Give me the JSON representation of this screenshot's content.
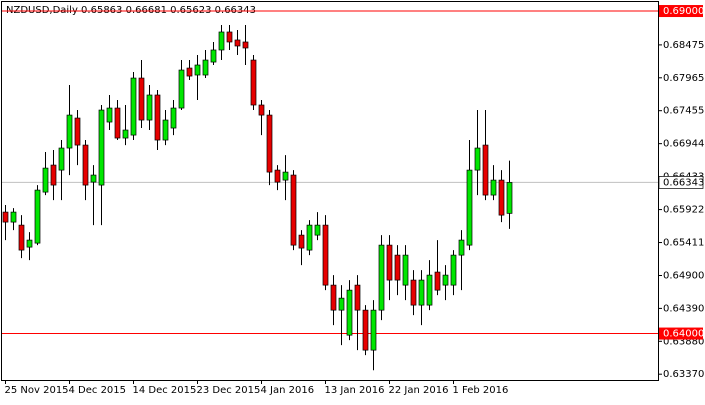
{
  "chart_data": {
    "type": "candlestick",
    "title": "NZDUSD,Daily  0.65863 0.66681 0.65623 0.66343",
    "categories": [
      "25 Nov 2015",
      null,
      null,
      null,
      null,
      null,
      null,
      null,
      "4 Dec 2015",
      null,
      null,
      null,
      null,
      null,
      null,
      null,
      "14 Dec 2015",
      null,
      null,
      null,
      null,
      null,
      null,
      null,
      "23 Dec 2015",
      null,
      null,
      null,
      null,
      null,
      null,
      null,
      "4 Jan 2016",
      null,
      null,
      null,
      null,
      null,
      null,
      null,
      "13 Jan 2016",
      null,
      null,
      null,
      null,
      null,
      null,
      null,
      "22 Jan 2016",
      null,
      null,
      null,
      null,
      null,
      null,
      null,
      "1 Feb 2016",
      null,
      null,
      null,
      null,
      null,
      null,
      null
    ],
    "open": [
      0.65883,
      0.65728,
      0.65681,
      0.6534,
      0.65402,
      0.66193,
      0.66612,
      0.66534,
      0.66876,
      0.67341,
      0.66922,
      0.66348,
      0.66302,
      0.67279,
      0.67496,
      0.67031,
      0.67077,
      0.67961,
      0.6731,
      0.67698,
      0.67,
      0.67186,
      0.67496,
      0.68116,
      0.68008,
      0.68008,
      0.68209,
      0.68396,
      0.68675,
      0.68551,
      0.6852,
      0.6824,
      0.67543,
      0.67387,
      0.66534,
      0.66379,
      0.66457,
      0.65526,
      0.65294,
      0.65526,
      0.65681,
      0.64751,
      0.64363,
      0.63975,
      0.64751,
      0.64363,
      0.63743,
      0.64363,
      0.65371,
      0.65216,
      0.64751,
      0.64829,
      0.64441,
      0.64441,
      0.64953,
      0.64751,
      0.64751,
      0.65216,
      0.65371,
      0.66534,
      0.66922,
      0.66147,
      0.66379,
      0.65863
    ],
    "high": [
      0.65992,
      0.65945,
      0.65836,
      0.65573,
      0.66302,
      0.66814,
      0.66845,
      0.67,
      0.67853,
      0.67465,
      0.67,
      0.66612,
      0.67543,
      0.67698,
      0.6762,
      0.67543,
      0.68054,
      0.6824,
      0.67853,
      0.67775,
      0.67465,
      0.6762,
      0.6824,
      0.6824,
      0.68318,
      0.68396,
      0.6852,
      0.68783,
      0.68783,
      0.68706,
      0.68783,
      0.68318,
      0.6762,
      0.67465,
      0.66612,
      0.66767,
      0.66534,
      0.65604,
      0.65758,
      0.65883,
      0.65836,
      0.64906,
      0.64751,
      0.64829,
      0.64906,
      0.64441,
      0.64518,
      0.65526,
      0.65526,
      0.65371,
      0.65371,
      0.64984,
      0.64984,
      0.65139,
      0.65449,
      0.65061,
      0.65294,
      0.65604,
      0.67,
      0.67465,
      0.67465,
      0.66612,
      0.66534,
      0.66681
    ],
    "low": [
      0.65449,
      0.65604,
      0.6517,
      0.65139,
      0.65371,
      0.66147,
      0.66069,
      0.66069,
      0.66457,
      0.66612,
      0.66069,
      0.65681,
      0.65681,
      0.67155,
      0.67,
      0.66922,
      0.67,
      0.67186,
      0.67155,
      0.66845,
      0.66922,
      0.67077,
      0.67465,
      0.6793,
      0.6762,
      0.67961,
      0.68163,
      0.6824,
      0.68396,
      0.68318,
      0.68163,
      0.67465,
      0.67077,
      0.66302,
      0.66224,
      0.66069,
      0.65294,
      0.65061,
      0.65216,
      0.65449,
      0.64673,
      0.6413,
      0.6382,
      0.63898,
      0.63743,
      0.63665,
      0.63432,
      0.64208,
      0.64518,
      0.64596,
      0.64518,
      0.64286,
      0.6413,
      0.64363,
      0.64596,
      0.64518,
      0.64596,
      0.64673,
      0.65294,
      0.66147,
      0.66069,
      0.66069,
      0.65728,
      0.65623
    ],
    "close": [
      0.65728,
      0.65883,
      0.65294,
      0.65449,
      0.66224,
      0.66565,
      0.66302,
      0.66876,
      0.67387,
      0.66922,
      0.66302,
      0.66457,
      0.67465,
      0.67496,
      0.67031,
      0.67155,
      0.67961,
      0.6731,
      0.67698,
      0.67,
      0.6731,
      0.67496,
      0.68085,
      0.67992,
      0.68163,
      0.6824,
      0.68396,
      0.68675,
      0.6852,
      0.68458,
      0.68427,
      0.67543,
      0.67387,
      0.66503,
      0.66348,
      0.66503,
      0.65371,
      0.65325,
      0.65681,
      0.65681,
      0.64751,
      0.64363,
      0.64549,
      0.64673,
      0.64363,
      0.63743,
      0.64363,
      0.65371,
      0.64829,
      0.64829,
      0.65216,
      0.64441,
      0.64829,
      0.64906,
      0.64673,
      0.64906,
      0.65216,
      0.65449,
      0.66534,
      0.66876,
      0.66147,
      0.66379,
      0.65836,
      0.66343
    ],
    "up_color": "#00e600",
    "down_color": "#e60000",
    "ylim": [
      0.6328,
      0.6914
    ],
    "yticks": [
      {
        "value": 0.68475,
        "label": "0.68475"
      },
      {
        "value": 0.67965,
        "label": "0.67965"
      },
      {
        "value": 0.67455,
        "label": "0.67455"
      },
      {
        "value": 0.66944,
        "label": "0.66944"
      },
      {
        "value": 0.66433,
        "label": "0.66433"
      },
      {
        "value": 0.65922,
        "label": "0.65922"
      },
      {
        "value": 0.65411,
        "label": "0.65411"
      },
      {
        "value": 0.649,
        "label": "0.64900"
      },
      {
        "value": 0.6439,
        "label": "0.64390"
      },
      {
        "value": 0.6388,
        "label": "0.63880"
      },
      {
        "value": 0.6337,
        "label": "0.63370"
      }
    ],
    "levels": [
      {
        "value": 0.69,
        "label": "0.69000"
      },
      {
        "value": 0.64,
        "label": "0.64000"
      }
    ],
    "level_color": "#ff0000"
  }
}
